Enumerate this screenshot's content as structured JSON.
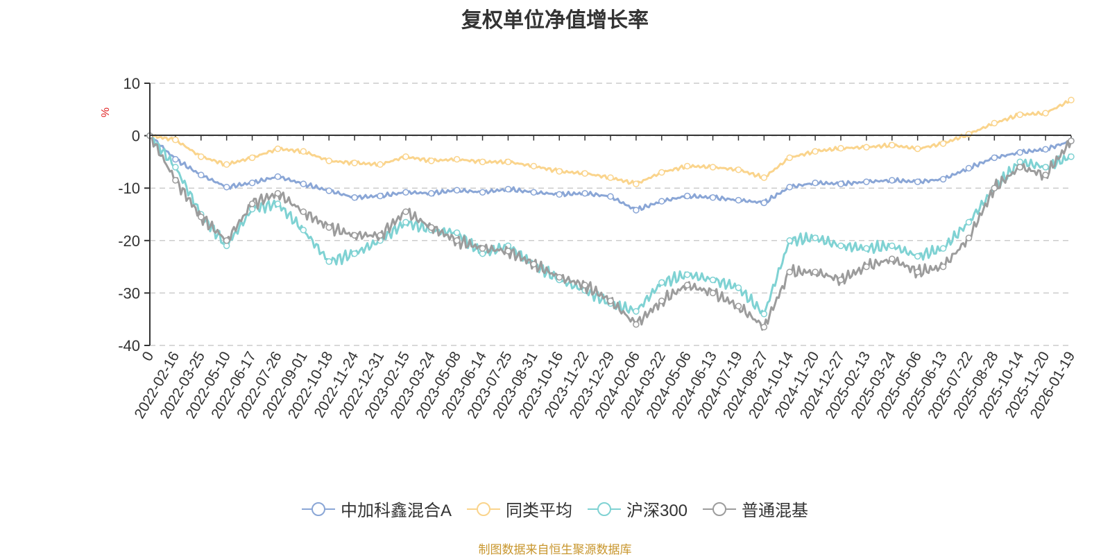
{
  "chart_data": {
    "type": "line",
    "title": "复权单位净值增长率",
    "ylabel": "%",
    "ylim": [
      -40,
      10
    ],
    "yticks": [
      "10",
      "0",
      "-10",
      "-20",
      "-30",
      "-40"
    ],
    "yticks_values": [
      10,
      0,
      -10,
      -20,
      -30,
      -40
    ],
    "x": [
      "0",
      "2022-02-16",
      "2022-03-25",
      "2022-05-10",
      "2022-06-17",
      "2022-07-26",
      "2022-09-01",
      "2022-10-18",
      "2022-11-24",
      "2022-12-31",
      "2023-02-15",
      "2023-03-24",
      "2023-05-08",
      "2023-06-14",
      "2023-07-25",
      "2023-08-31",
      "2023-10-16",
      "2023-11-22",
      "2023-12-29",
      "2024-02-06",
      "2024-03-22",
      "2024-05-06",
      "2024-06-13",
      "2024-07-19",
      "2024-08-27",
      "2024-10-14",
      "2024-11-20",
      "2024-12-27",
      "2025-02-13",
      "2025-03-24",
      "2025-05-06",
      "2025-06-13",
      "2025-07-22",
      "2025-08-28",
      "2025-10-14",
      "2025-11-20",
      "2026-01-19"
    ],
    "grid": true,
    "legend_position": "bottom",
    "series": [
      {
        "name": "中加科鑫混合A",
        "color": "#8aa6d6",
        "values": [
          0,
          -4.5,
          -7.5,
          -9.8,
          -9.0,
          -7.8,
          -9.2,
          -10.5,
          -11.8,
          -11.5,
          -10.8,
          -11.0,
          -10.4,
          -10.8,
          -10.2,
          -10.8,
          -11.2,
          -11.0,
          -11.6,
          -14.2,
          -12.5,
          -11.5,
          -11.8,
          -12.3,
          -12.8,
          -9.8,
          -9.0,
          -9.2,
          -8.8,
          -8.5,
          -8.8,
          -8.3,
          -6.2,
          -4.2,
          -3.2,
          -2.6,
          -1.0
        ]
      },
      {
        "name": "同类平均",
        "color": "#fad48c",
        "values": [
          0,
          -0.8,
          -4.0,
          -5.5,
          -4.2,
          -2.5,
          -3.0,
          -4.8,
          -5.2,
          -5.5,
          -4.0,
          -4.8,
          -4.5,
          -5.0,
          -5.0,
          -5.8,
          -6.8,
          -7.2,
          -8.0,
          -9.2,
          -7.0,
          -5.8,
          -6.0,
          -6.5,
          -8.0,
          -4.2,
          -3.0,
          -2.4,
          -2.2,
          -1.8,
          -2.5,
          -1.5,
          0.3,
          2.4,
          4.0,
          4.3,
          6.8
        ]
      },
      {
        "name": "沪深300",
        "color": "#7fd2d3",
        "values": [
          0,
          -6.0,
          -15.0,
          -21.0,
          -14.0,
          -13.0,
          -18.0,
          -24.0,
          -22.5,
          -20.0,
          -16.5,
          -18.0,
          -18.5,
          -22.5,
          -21.0,
          -24.5,
          -27.5,
          -29.5,
          -32.0,
          -33.5,
          -28.0,
          -26.5,
          -27.5,
          -29.0,
          -34.0,
          -20.0,
          -19.5,
          -21.0,
          -21.5,
          -21.0,
          -23.0,
          -21.5,
          -16.5,
          -10.0,
          -5.0,
          -6.0,
          -4.0
        ]
      },
      {
        "name": "普通混基",
        "color": "#9c9c9c",
        "values": [
          0,
          -8.5,
          -15.5,
          -20.0,
          -13.0,
          -11.0,
          -14.5,
          -17.5,
          -19.0,
          -19.0,
          -14.5,
          -17.5,
          -20.0,
          -21.5,
          -22.0,
          -24.5,
          -27.0,
          -28.5,
          -31.5,
          -36.0,
          -31.5,
          -28.5,
          -30.0,
          -32.5,
          -36.5,
          -26.0,
          -26.0,
          -27.5,
          -25.0,
          -23.5,
          -26.0,
          -25.0,
          -19.5,
          -10.0,
          -6.0,
          -7.5,
          -1.0
        ]
      }
    ]
  },
  "source_note": "制图数据来自恒生聚源数据库"
}
